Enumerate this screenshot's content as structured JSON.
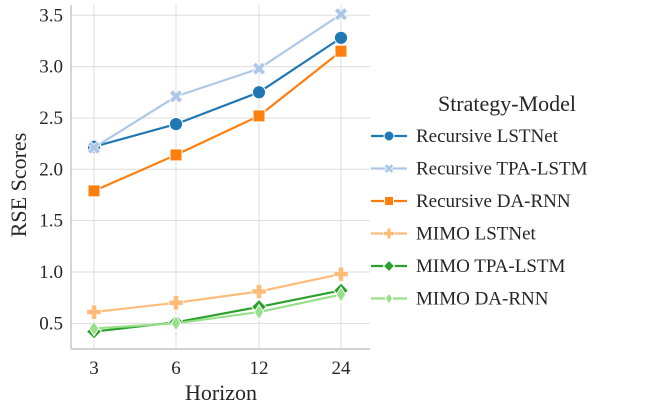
{
  "chart_data": {
    "type": "line",
    "title": "",
    "xlabel": "Horizon",
    "ylabel": "RSE Scores",
    "categories": [
      "3",
      "6",
      "12",
      "24"
    ],
    "ylim": [
      0.25,
      3.6
    ],
    "yticks": [
      "0.5",
      "1.0",
      "1.5",
      "2.0",
      "2.5",
      "3.0",
      "3.5"
    ],
    "grid": true,
    "legend_title": "Strategy-Model",
    "legend_position": "right",
    "series": [
      {
        "name": "Recursive LSTNet",
        "values": [
          2.22,
          2.44,
          2.75,
          3.28
        ],
        "color": "#1f77b4",
        "marker": "circle"
      },
      {
        "name": "Recursive TPA-LSTM",
        "values": [
          2.21,
          2.71,
          2.98,
          3.51
        ],
        "color": "#aec7e8",
        "marker": "x"
      },
      {
        "name": "Recursive DA-RNN",
        "values": [
          1.79,
          2.14,
          2.52,
          3.15
        ],
        "color": "#ff7f0e",
        "marker": "square"
      },
      {
        "name": "MIMO LSTNet",
        "values": [
          0.61,
          0.7,
          0.81,
          0.98
        ],
        "color": "#ffbb78",
        "marker": "plus"
      },
      {
        "name": "MIMO TPA-LSTM",
        "values": [
          0.42,
          0.51,
          0.66,
          0.82
        ],
        "color": "#2ca02c",
        "marker": "diamond"
      },
      {
        "name": "MIMO DA-RNN",
        "values": [
          0.45,
          0.5,
          0.61,
          0.78
        ],
        "color": "#98df8a",
        "marker": "thin_diamond"
      }
    ]
  }
}
